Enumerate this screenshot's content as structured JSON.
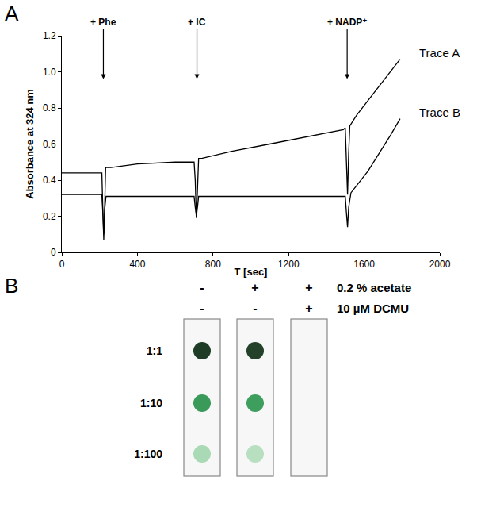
{
  "chart_data": {
    "label": "A",
    "type": "line",
    "x_label": "T [sec]",
    "y_label": "Absorbance at 324 nm",
    "xlim": [
      0,
      2000
    ],
    "xticks": [
      0,
      400,
      800,
      1200,
      1600,
      2000
    ],
    "ylim": [
      0,
      1.2
    ],
    "yticks": [
      0,
      0.2,
      0.4,
      0.6,
      0.8,
      {
        "value": 1,
        "label": "1.0"
      },
      1.2
    ],
    "grid": false,
    "series": [
      {
        "name": "Trace A",
        "color": "#000000",
        "x": [
          0,
          200,
          212,
          218,
          222,
          228,
          232,
          260,
          400,
          600,
          700,
          706,
          712,
          718,
          724,
          740,
          900,
          1100,
          1300,
          1490,
          1500,
          1506,
          1512,
          1518,
          1524,
          1560,
          1620,
          1680,
          1740,
          1790
        ],
        "values": [
          0.44,
          0.44,
          0.44,
          0.2,
          0.07,
          0.3,
          0.47,
          0.47,
          0.49,
          0.5,
          0.5,
          0.4,
          0.19,
          0.35,
          0.52,
          0.52,
          0.56,
          0.6,
          0.64,
          0.68,
          0.69,
          0.5,
          0.32,
          0.55,
          0.7,
          0.76,
          0.84,
          0.92,
          1.0,
          1.07
        ]
      },
      {
        "name": "Trace B",
        "color": "#000000",
        "x": [
          0,
          200,
          212,
          218,
          222,
          228,
          234,
          400,
          600,
          700,
          706,
          712,
          718,
          724,
          900,
          1200,
          1490,
          1500,
          1506,
          1512,
          1518,
          1530,
          1560,
          1620,
          1680,
          1740,
          1790
        ],
        "values": [
          0.32,
          0.32,
          0.32,
          0.2,
          0.1,
          0.25,
          0.31,
          0.31,
          0.31,
          0.31,
          0.25,
          0.2,
          0.25,
          0.31,
          0.31,
          0.31,
          0.31,
          0.31,
          0.22,
          0.14,
          0.25,
          0.33,
          0.37,
          0.45,
          0.55,
          0.65,
          0.74
        ]
      }
    ],
    "annotations": [
      {
        "text": "+ Phe",
        "x": 220,
        "y": 0.96
      },
      {
        "text": "+ IC",
        "x": 715,
        "y": 0.96
      },
      {
        "text": "+ NADP⁺",
        "x": 1510,
        "y": 0.96
      }
    ]
  },
  "spot_assay": {
    "label": "B",
    "conditions": [
      {
        "name": "0.2 % acetate",
        "levels": [
          "-",
          "+",
          "+"
        ]
      },
      {
        "name": "10 µM DCMU",
        "levels": [
          "-",
          "-",
          "+"
        ]
      }
    ],
    "dilutions": [
      "1:1",
      "1:10",
      "1:100"
    ],
    "spots": [
      [
        "#1f3d26",
        "#3a9a5a",
        "#a9d9b5"
      ],
      [
        "#24412a",
        "#3d9e5e",
        "#b9dfc1"
      ],
      [
        null,
        null,
        null
      ]
    ]
  }
}
